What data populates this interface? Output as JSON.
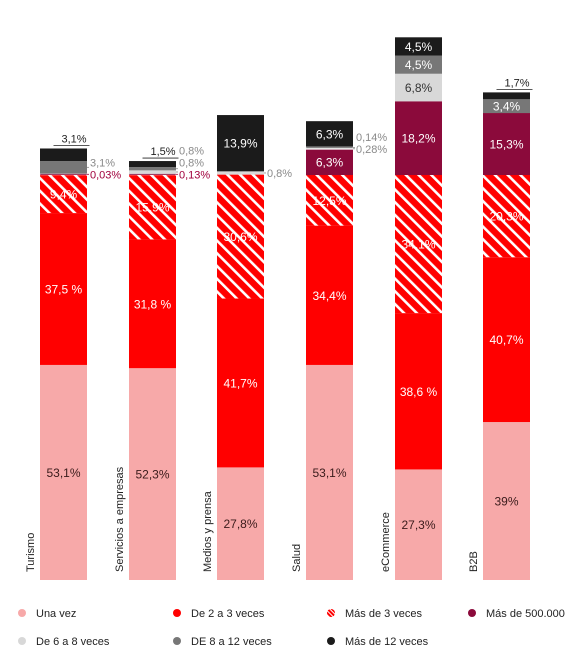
{
  "colors": {
    "una_vez": "#f7a9a9",
    "de_2_a_3": "#ff0000",
    "mas_de_3": "#ff0000",
    "mas_de_500000": "#8b0a3b",
    "de_6_a_8": "#d8d8d8",
    "de_8_a_12": "#777777",
    "mas_de_12": "#1b1b1b",
    "small_label": "#a0003c",
    "grey_label": "#8a8a8a"
  },
  "chart_data": {
    "type": "bar",
    "stacked": true,
    "categories": [
      "Turismo",
      "Servicios a empresas",
      "Medios y prensa",
      "Salud",
      "eCommerce",
      "B2B"
    ],
    "series": [
      {
        "key": "una_vez",
        "name": "Una vez",
        "values": [
          53.1,
          52.3,
          27.8,
          53.1,
          27.3,
          39
        ],
        "labels": [
          "53,1%",
          "52,3%",
          "27,8%",
          "53,1%",
          "27,3%",
          "39%"
        ]
      },
      {
        "key": "de_2_a_3",
        "name": "De 2 a 3 veces",
        "values": [
          37.5,
          31.8,
          41.7,
          34.4,
          38.6,
          40.7
        ],
        "labels": [
          "37,5 %",
          "31,8 %",
          "41,7%",
          "34,4%",
          "38,6 %",
          "40,7%"
        ]
      },
      {
        "key": "mas_de_3",
        "name": "Más de 3 veces",
        "values": [
          9.4,
          15.9,
          30.6,
          12.5,
          34.1,
          20.3
        ],
        "labels": [
          "9,4%",
          "15,9%",
          "30,6%",
          "12,5%",
          "34,1%",
          "20,3%"
        ]
      },
      {
        "key": "mas_de_500000",
        "name": "Más de 500.000",
        "values": [
          0.03,
          0.13,
          0.0,
          6.3,
          18.2,
          15.3
        ],
        "labels": [
          "0,03%",
          "0,13%",
          "",
          "6,3%",
          "18,2%",
          "15,3%"
        ]
      },
      {
        "key": "de_6_a_8",
        "name": "De 6 a 8 veces",
        "values": [
          0,
          0.8,
          0.8,
          0.28,
          6.8,
          0
        ],
        "labels": [
          "",
          "0,8%",
          "0,8%",
          "0,28%",
          "6,8%",
          ""
        ]
      },
      {
        "key": "de_8_a_12",
        "name": "DE 8 a 12 veces",
        "values": [
          3.1,
          0.8,
          0,
          0.14,
          4.5,
          3.4
        ],
        "labels": [
          "3,1%",
          "0,8%",
          "",
          "0,14%",
          "4,5%",
          "3,4%"
        ]
      },
      {
        "key": "mas_de_12",
        "name": "Más de 12 veces",
        "values": [
          3.1,
          1.5,
          13.9,
          6.3,
          4.5,
          1.7
        ],
        "labels": [
          "3,1%",
          "1,5%",
          "13,9%",
          "6,3%",
          "4,5%",
          "1,7%"
        ]
      }
    ],
    "title": "",
    "xlabel": "",
    "ylabel": "",
    "grid": false,
    "legend_position": "bottom"
  }
}
